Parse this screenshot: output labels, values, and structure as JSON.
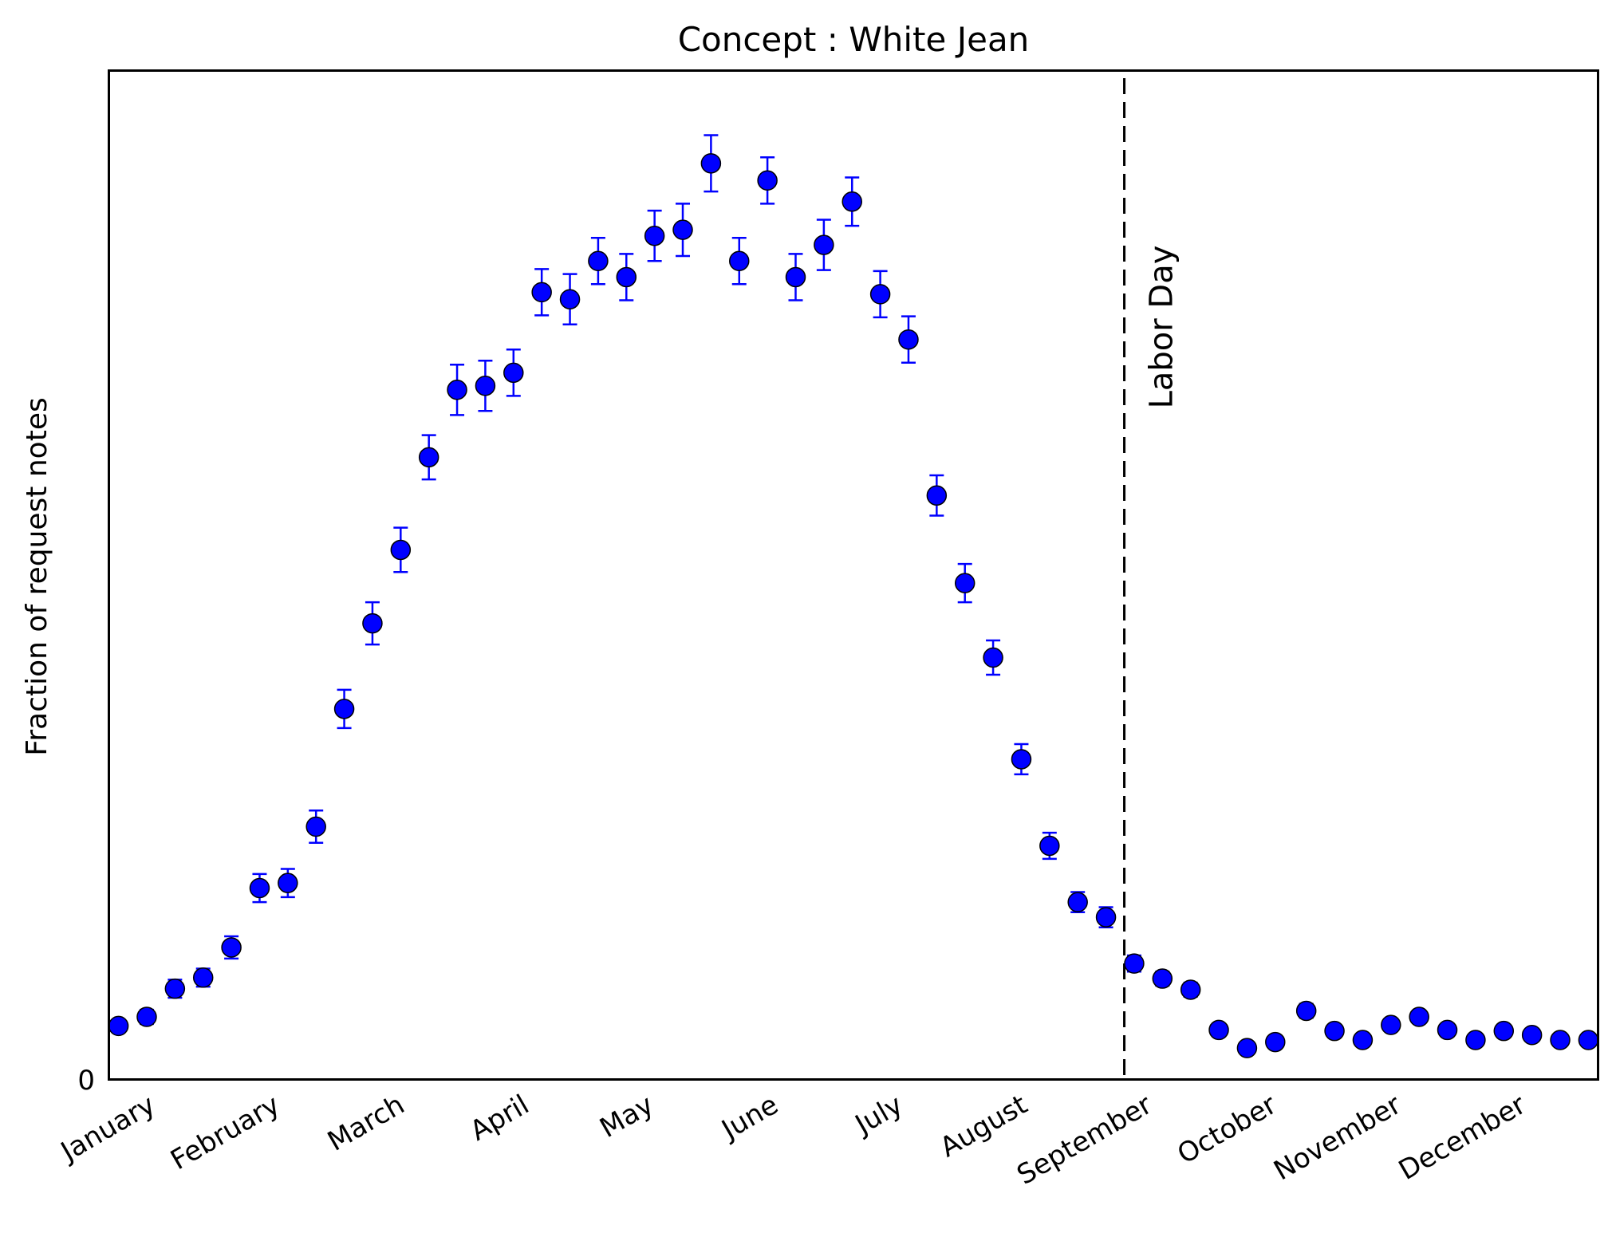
{
  "chart_data": {
    "type": "scatter",
    "title": "Concept : White Jean",
    "xlabel": "",
    "ylabel": "Fraction of request notes",
    "y_tick_labels": [
      "0"
    ],
    "x_tick_labels": [
      "January",
      "February",
      "March",
      "April",
      "May",
      "June",
      "July",
      "August",
      "September",
      "October",
      "November",
      "December"
    ],
    "xlim": [
      0,
      52.7
    ],
    "ylim": [
      0,
      1
    ],
    "annotation": {
      "text": "Labor Day",
      "x": 35.95,
      "style": "dashed vertical line"
    },
    "marker_color": "#0000ff",
    "marker_edge_color": "#000000",
    "errorbar_color": "#0000ff",
    "series": [
      {
        "x": [
          0.3,
          1.3,
          2.3,
          3.3,
          4.3,
          5.3,
          6.3,
          7.3,
          8.3,
          9.3,
          10.3,
          11.3,
          12.3,
          13.3,
          14.3,
          15.3,
          16.3,
          17.3,
          18.3,
          19.3,
          20.3,
          21.3,
          22.3,
          23.3,
          24.3,
          25.3,
          26.3,
          27.3,
          28.3,
          29.3,
          30.3,
          31.3,
          32.3,
          33.3,
          34.3,
          35.3,
          36.3,
          37.3,
          38.3,
          39.3,
          40.3,
          41.3,
          42.4,
          43.4,
          44.4,
          45.4,
          46.4,
          47.4,
          48.4,
          49.4,
          50.4,
          51.4,
          52.4
        ],
        "y": [
          0.052,
          0.061,
          0.089,
          0.1,
          0.13,
          0.189,
          0.194,
          0.25,
          0.367,
          0.452,
          0.525,
          0.617,
          0.684,
          0.688,
          0.701,
          0.781,
          0.774,
          0.812,
          0.796,
          0.837,
          0.843,
          0.909,
          0.812,
          0.892,
          0.796,
          0.828,
          0.871,
          0.779,
          0.734,
          0.579,
          0.492,
          0.418,
          0.317,
          0.231,
          0.175,
          0.16,
          0.114,
          0.099,
          0.088,
          0.048,
          0.03,
          0.036,
          0.067,
          0.047,
          0.038,
          0.053,
          0.061,
          0.048,
          0.038,
          0.047,
          0.043,
          0.038,
          0.038
        ],
        "error": [
          0.006,
          0.007,
          0.009,
          0.009,
          0.011,
          0.014,
          0.014,
          0.016,
          0.019,
          0.021,
          0.022,
          0.022,
          0.025,
          0.025,
          0.023,
          0.023,
          0.025,
          0.023,
          0.023,
          0.025,
          0.026,
          0.028,
          0.023,
          0.023,
          0.023,
          0.025,
          0.024,
          0.023,
          0.023,
          0.02,
          0.019,
          0.017,
          0.015,
          0.013,
          0.01,
          0.01,
          0.008,
          0.007,
          0.007,
          0.006,
          0.005,
          0.005,
          0.007,
          0.006,
          0.005,
          0.006,
          0.006,
          0.006,
          0.005,
          0.006,
          0.006,
          0.005,
          0.005
        ]
      }
    ]
  }
}
